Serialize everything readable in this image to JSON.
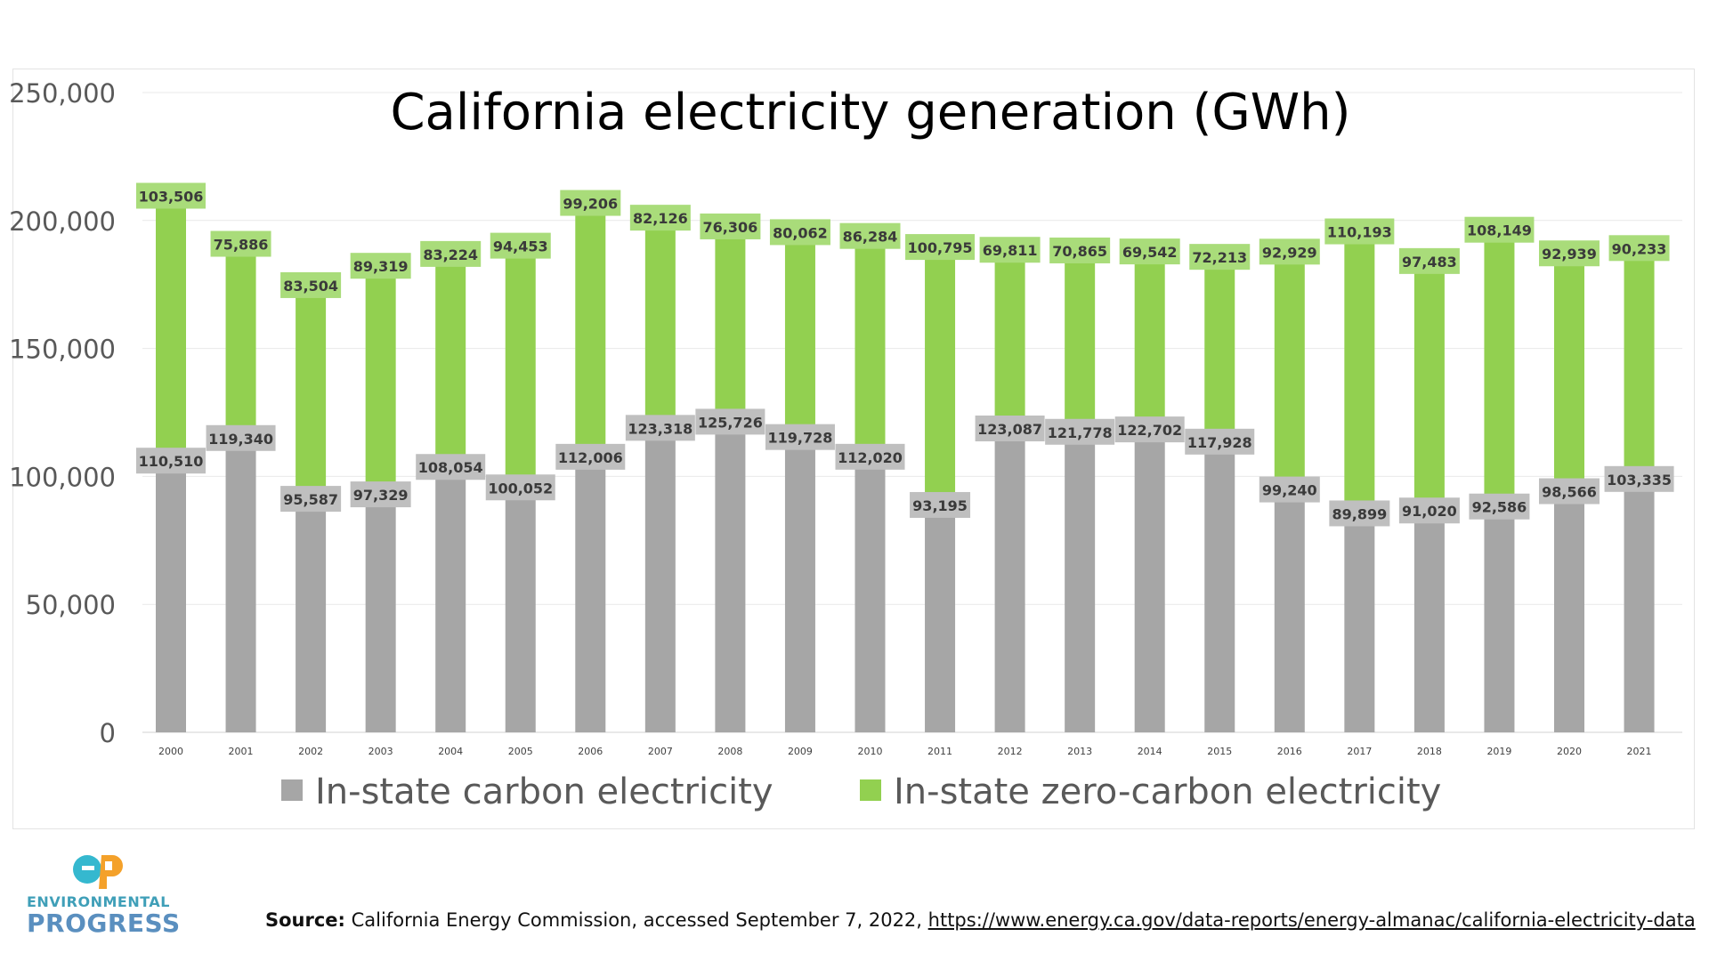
{
  "chart_data": {
    "type": "bar",
    "stacked": true,
    "title": "California electricity generation (GWh)",
    "xlabel": "",
    "ylabel": "",
    "ylim": [
      0,
      250000
    ],
    "yticks": [
      0,
      50000,
      100000,
      150000,
      200000,
      250000
    ],
    "ytick_labels": [
      "0",
      "50,000",
      "100,000",
      "150,000",
      "200,000",
      "250,000"
    ],
    "grid": true,
    "legend_position": "bottom",
    "categories": [
      "2000",
      "2001",
      "2002",
      "2003",
      "2004",
      "2005",
      "2006",
      "2007",
      "2008",
      "2009",
      "2010",
      "2011",
      "2012",
      "2013",
      "2014",
      "2015",
      "2016",
      "2017",
      "2018",
      "2019",
      "2020",
      "2021"
    ],
    "series": [
      {
        "name": "In-state carbon electricity",
        "color": "#a6a6a6",
        "values": [
          110510,
          119340,
          95587,
          97329,
          108054,
          100052,
          112006,
          123318,
          125726,
          119728,
          112020,
          93195,
          123087,
          121778,
          122702,
          117928,
          99240,
          89899,
          91020,
          92586,
          98566,
          103335
        ],
        "labels": [
          "110,510",
          "119,340",
          "95,587",
          "97,329",
          "108,054",
          "100,052",
          "112,006",
          "123,318",
          "125,726",
          "119,728",
          "112,020",
          "93,195",
          "123,087",
          "121,778",
          "122,702",
          "117,928",
          "99,240",
          "89,899",
          "91,020",
          "92,586",
          "98,566",
          "103,335"
        ]
      },
      {
        "name": "In-state zero-carbon electricity",
        "color": "#92d050",
        "values": [
          103506,
          75886,
          83504,
          89319,
          83224,
          94453,
          99206,
          82126,
          76306,
          80062,
          86284,
          100795,
          69811,
          70865,
          69542,
          72213,
          92929,
          110193,
          97483,
          108149,
          92939,
          90233
        ],
        "labels": [
          "103,506",
          "75,886",
          "83,504",
          "89,319",
          "83,224",
          "94,453",
          "99,206",
          "82,126",
          "76,306",
          "80,062",
          "86,284",
          "100,795",
          "69,811",
          "70,865",
          "69,542",
          "72,213",
          "92,929",
          "110,193",
          "97,483",
          "108,149",
          "92,939",
          "90,233"
        ]
      }
    ]
  },
  "footer": {
    "logo_line1": "ENVIRONMENTAL",
    "logo_line2": "PROGRESS",
    "logo_colors": {
      "cyan": "#35b8cf",
      "orange": "#f4a12a"
    },
    "source_label": "Source:",
    "source_text": " California Energy Commission,  accessed September 7, 2022, ",
    "source_url": "https://www.energy.ca.gov/data-reports/energy-almanac/california-electricity-data"
  }
}
